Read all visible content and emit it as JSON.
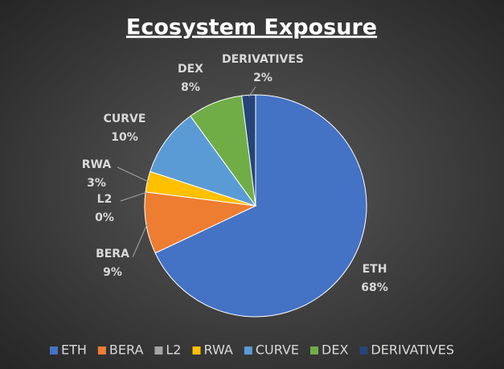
{
  "chart_data": {
    "type": "pie",
    "title": "Ecosystem Exposure",
    "categories": [
      "ETH",
      "BERA",
      "L2",
      "RWA",
      "CURVE",
      "DEX",
      "DERIVATIVES"
    ],
    "values": [
      68,
      9,
      0,
      3,
      10,
      8,
      2
    ],
    "value_labels": [
      "68%",
      "9%",
      "0%",
      "3%",
      "10%",
      "8%",
      "2%"
    ],
    "colors": [
      "#4472c4",
      "#ed7d31",
      "#a5a5a5",
      "#ffc000",
      "#5b9bd5",
      "#70ad47",
      "#264478"
    ],
    "legend": "bottom"
  }
}
